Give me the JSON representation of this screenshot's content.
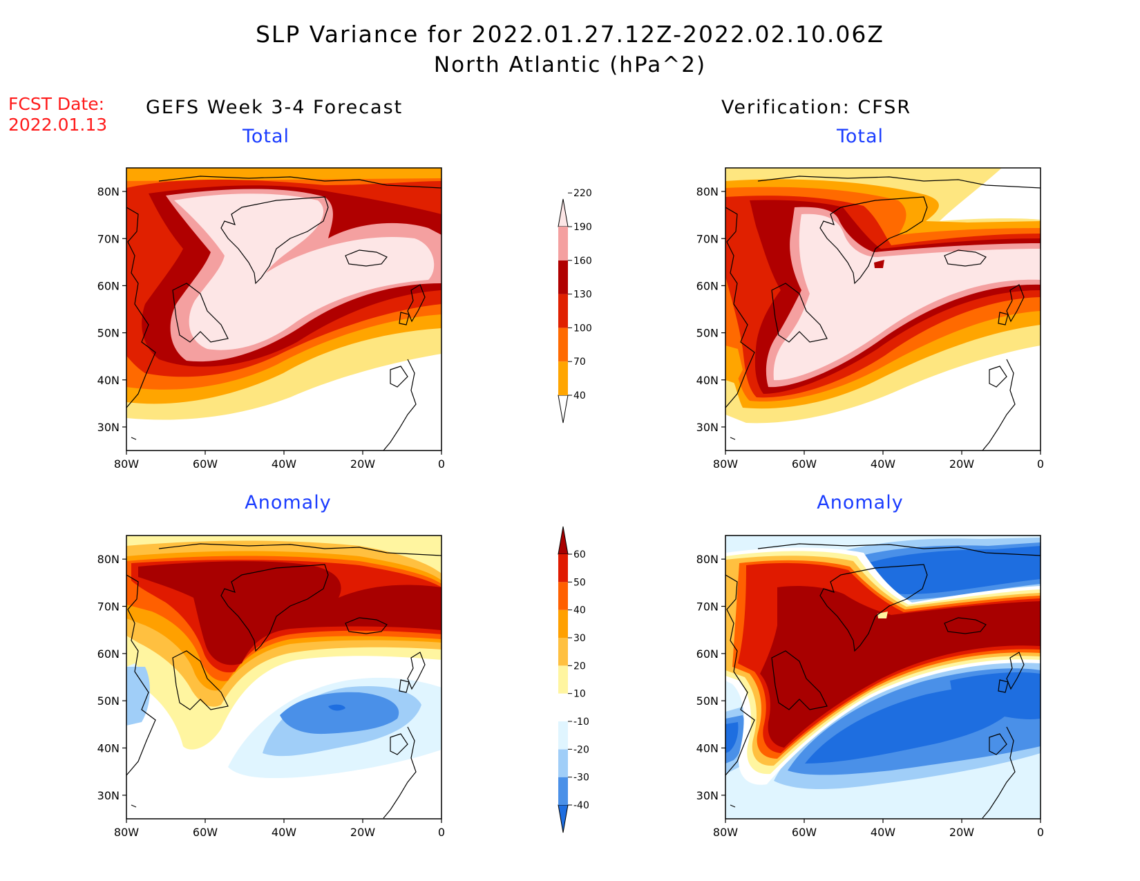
{
  "title": {
    "line1": "SLP Variance for 2022.01.27.12Z-2022.02.10.06Z",
    "line2": "North Atlantic (hPa^2)"
  },
  "forecast_date": {
    "label": "FCST Date:",
    "value": "2022.01.13"
  },
  "columns": {
    "left": "GEFS Week 3-4 Forecast",
    "right": "Verification: CFSR"
  },
  "panels": {
    "top_left": "Total",
    "top_right": "Total",
    "bottom_left": "Anomaly",
    "bottom_right": "Anomaly"
  },
  "axes": {
    "lon_ticks": [
      "80W",
      "60W",
      "40W",
      "20W",
      "0"
    ],
    "lat_ticks": [
      "30N",
      "40N",
      "50N",
      "60N",
      "70N",
      "80N"
    ],
    "lon_range": [
      -80,
      0
    ],
    "lat_range": [
      25,
      85
    ]
  },
  "colorbars": {
    "total": {
      "levels": [
        "40",
        "70",
        "100",
        "130",
        "160",
        "190",
        "220"
      ],
      "colors": [
        "#fee680",
        "#ffa500",
        "#ff6a00",
        "#e02000",
        "#b00000",
        "#f4a0a0",
        "#fde6e6"
      ]
    },
    "anomaly": {
      "levels": [
        "-40",
        "-30",
        "-20",
        "-10",
        "10",
        "20",
        "30",
        "40",
        "50",
        "60"
      ],
      "colors": [
        "#1e6ee0",
        "#4a90e8",
        "#a0cef8",
        "#e0f5ff",
        "#ffffff",
        "#fff5a0",
        "#ffc040",
        "#ffa000",
        "#ff6000",
        "#e01a00",
        "#a80000"
      ]
    }
  },
  "palette": {
    "t40": "#fee680",
    "t70": "#ffa500",
    "t100": "#ff6a00",
    "t130": "#e02000",
    "t160": "#b00000",
    "t190": "#f4a0a0",
    "t220": "#fde6e6",
    "a_n40": "#1e6ee0",
    "a_n30": "#4a90e8",
    "a_n20": "#a0cef8",
    "a_n10": "#e0f5ff",
    "a_p10": "#fff5a0",
    "a_p20": "#ffc040",
    "a_p30": "#ffa000",
    "a_p40": "#ff6000",
    "a_p50": "#e01a00",
    "a_p60": "#a80000"
  }
}
